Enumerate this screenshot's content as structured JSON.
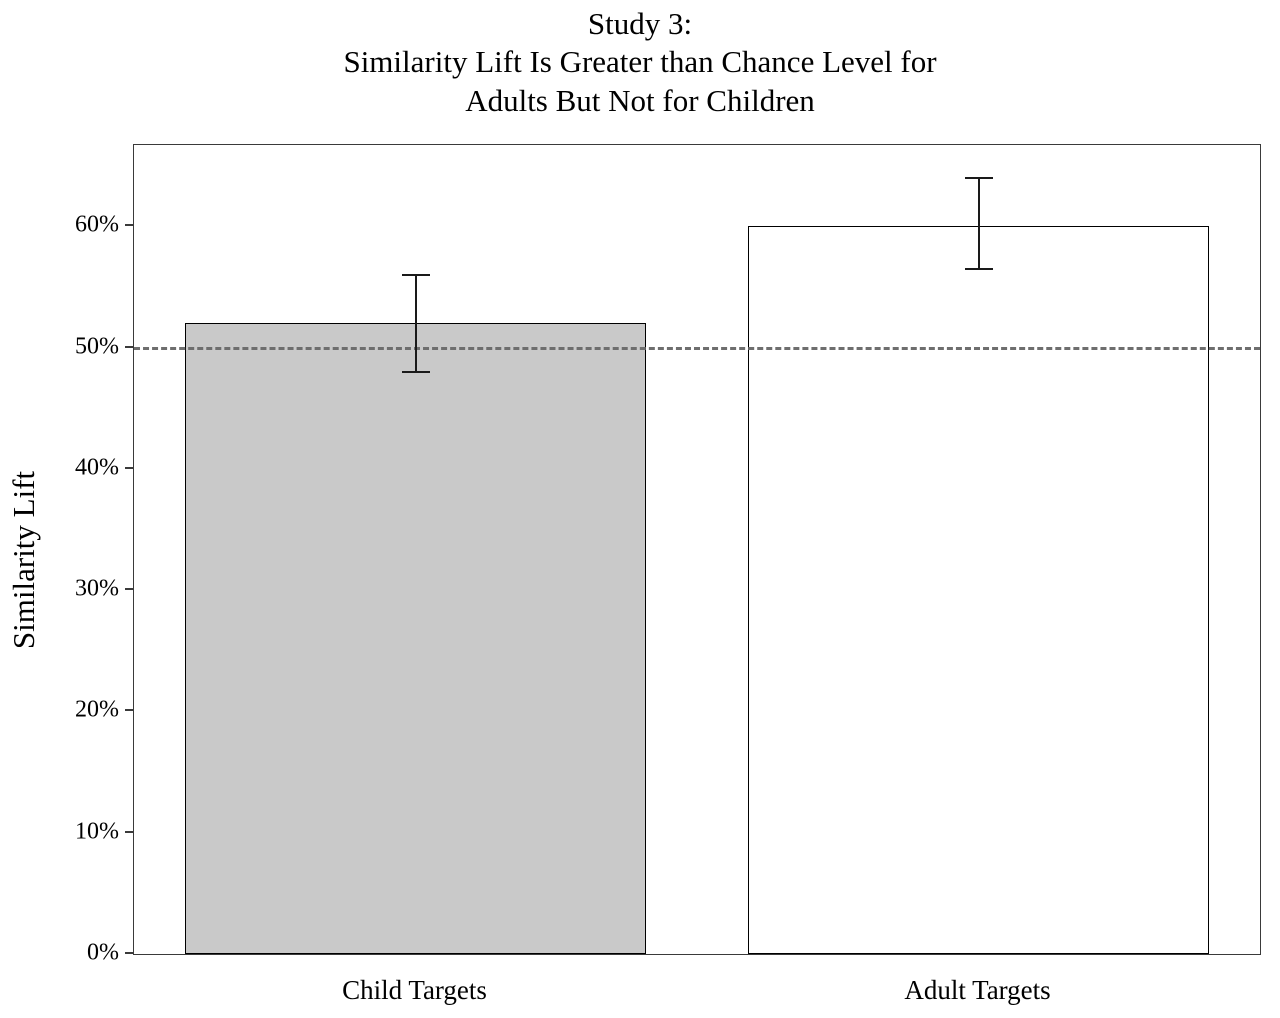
{
  "chart_data": {
    "type": "bar",
    "title": "Study 3: Similarity Lift Is Greater than Chance Level for Adults But Not for Children",
    "title_lines": [
      "Study 3:",
      "Similarity Lift Is Greater than Chance Level for",
      "Adults But Not for Children"
    ],
    "ylabel": "Similarity Lift",
    "xlabel": "",
    "categories": [
      "Child Targets",
      "Adult Targets"
    ],
    "values": [
      52,
      60
    ],
    "error_low": [
      48,
      56.5
    ],
    "error_high": [
      56,
      64
    ],
    "yticks": [
      0,
      10,
      20,
      30,
      40,
      50,
      60
    ],
    "ytick_labels": [
      "0%",
      "10%",
      "20%",
      "30%",
      "40%",
      "50%",
      "60%"
    ],
    "ylim": [
      0,
      66.7
    ],
    "reference_line_value": 50,
    "bar_fill_colors": [
      "#c9c9c9",
      "#ffffff"
    ],
    "bar_border_color": "#000000",
    "reference_line_color": "#6e6e6e",
    "grid": false,
    "legend": false
  }
}
